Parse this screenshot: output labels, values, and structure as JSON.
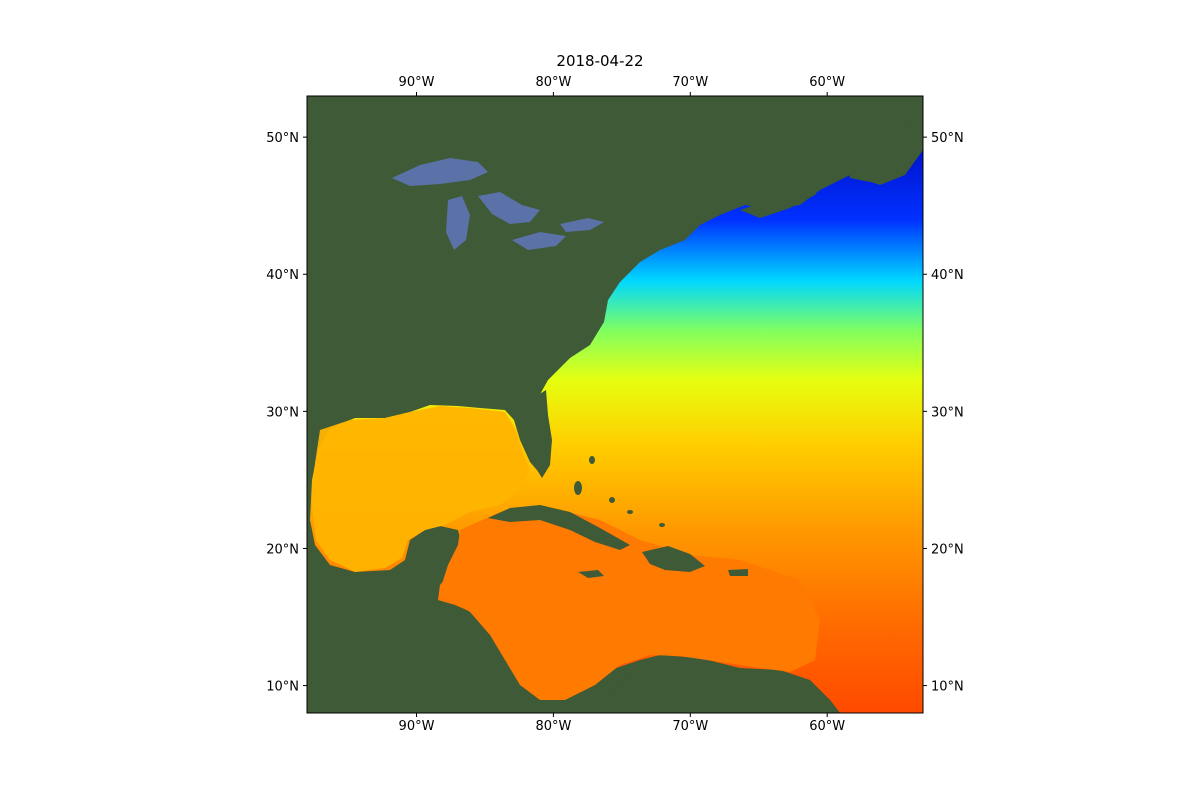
{
  "title": "2018-04-22",
  "map": {
    "extent": {
      "lon_min": -98,
      "lon_max": -53,
      "lat_min": 8,
      "lat_max": 53
    },
    "lon_ticks": [
      {
        "value": -90,
        "label": "90°W"
      },
      {
        "value": -80,
        "label": "80°W"
      },
      {
        "value": -70,
        "label": "70°W"
      },
      {
        "value": -60,
        "label": "60°W"
      }
    ],
    "lat_ticks": [
      {
        "value": 50,
        "label": "50°N"
      },
      {
        "value": 40,
        "label": "40°N"
      },
      {
        "value": 30,
        "label": "30°N"
      },
      {
        "value": 20,
        "label": "20°N"
      },
      {
        "value": 10,
        "label": "10°N"
      }
    ],
    "colors": {
      "land": "#3f5a36",
      "lakes": "#5b72a8",
      "sst_warm": "#ff2a00",
      "sst_mid": "#ffd400",
      "sst_cool": "#00e5ff",
      "sst_cold": "#0000b0"
    }
  }
}
